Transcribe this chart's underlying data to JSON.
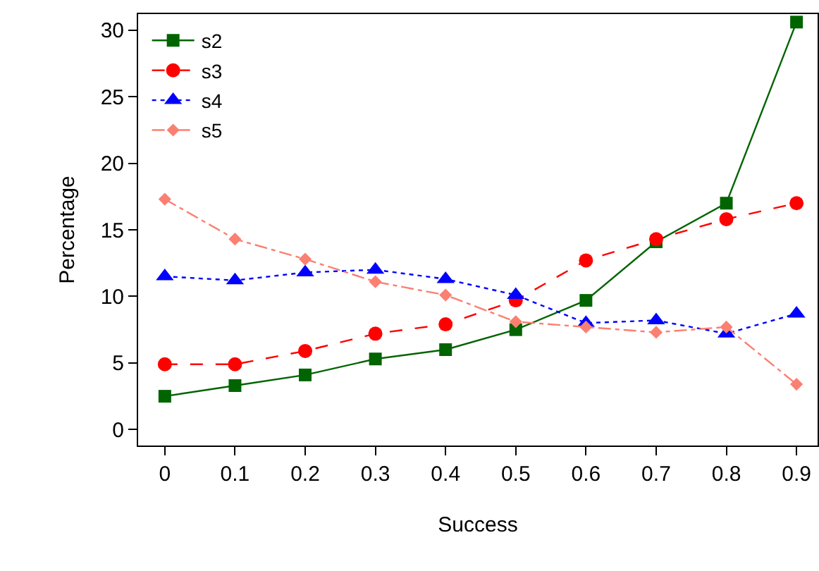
{
  "chart_data": {
    "type": "line",
    "xlabel": "Success",
    "ylabel": "Percentage",
    "x": [
      0,
      0.1,
      0.2,
      0.3,
      0.4,
      0.5,
      0.6,
      0.7,
      0.8,
      0.9
    ],
    "xlim": [
      -0.038,
      0.93
    ],
    "xticks": [
      0,
      0.1,
      0.2,
      0.3,
      0.4,
      0.5,
      0.6,
      0.7,
      0.8,
      0.9
    ],
    "ylim": [
      -1.2,
      31.2
    ],
    "yticks": [
      0,
      5,
      10,
      15,
      20,
      25,
      30
    ],
    "legend": "top left",
    "series": [
      {
        "name": "s2",
        "color": "#006400",
        "marker": "square",
        "line_style": "solid",
        "values": [
          2.5,
          3.3,
          4.1,
          5.3,
          6.0,
          7.5,
          9.7,
          14.1,
          17.0,
          30.6
        ]
      },
      {
        "name": "s3",
        "color": "#ff0000",
        "marker": "circle",
        "line_style": "dashed",
        "values": [
          4.9,
          4.9,
          5.9,
          7.2,
          7.9,
          9.7,
          12.7,
          14.3,
          15.8,
          17.0
        ]
      },
      {
        "name": "s4",
        "color": "#0000ff",
        "marker": "triangle",
        "line_style": "dotted",
        "values": [
          11.5,
          11.2,
          11.8,
          12.0,
          11.3,
          10.1,
          8.0,
          8.2,
          7.2,
          8.7
        ]
      },
      {
        "name": "s5",
        "color": "#fa8072",
        "marker": "diamond",
        "line_style": "dashdot",
        "values": [
          17.3,
          14.3,
          12.8,
          11.1,
          10.1,
          8.1,
          7.7,
          7.3,
          7.7,
          3.4
        ]
      }
    ]
  }
}
